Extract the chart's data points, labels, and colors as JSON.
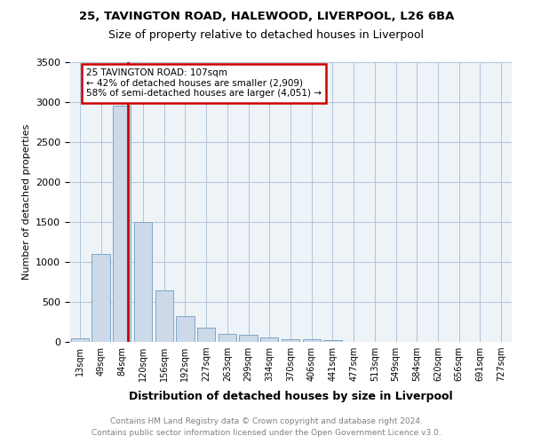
{
  "title1": "25, TAVINGTON ROAD, HALEWOOD, LIVERPOOL, L26 6BA",
  "title2": "Size of property relative to detached houses in Liverpool",
  "xlabel": "Distribution of detached houses by size in Liverpool",
  "ylabel": "Number of detached properties",
  "bin_labels": [
    "13sqm",
    "49sqm",
    "84sqm",
    "120sqm",
    "156sqm",
    "192sqm",
    "227sqm",
    "263sqm",
    "299sqm",
    "334sqm",
    "370sqm",
    "406sqm",
    "441sqm",
    "477sqm",
    "513sqm",
    "549sqm",
    "584sqm",
    "620sqm",
    "656sqm",
    "691sqm",
    "727sqm"
  ],
  "bar_values": [
    50,
    1100,
    2950,
    1500,
    650,
    325,
    175,
    100,
    90,
    55,
    35,
    30,
    25,
    5,
    2,
    1,
    1,
    0,
    0,
    0,
    0
  ],
  "bar_color": "#ccd9e8",
  "bar_edge_color": "#7da7c4",
  "vline_color": "#cc0000",
  "annotation_line1": "25 TAVINGTON ROAD: 107sqm",
  "annotation_line2": "← 42% of detached houses are smaller (2,909)",
  "annotation_line3": "58% of semi-detached houses are larger (4,051) →",
  "annotation_box_color": "#cc0000",
  "ylim": [
    0,
    3500
  ],
  "yticks": [
    0,
    500,
    1000,
    1500,
    2000,
    2500,
    3000,
    3500
  ],
  "grid_color": "#b0c4d8",
  "background_color": "#eef3f8",
  "footer1": "Contains HM Land Registry data © Crown copyright and database right 2024.",
  "footer2": "Contains public sector information licensed under the Open Government Licence v3.0.",
  "vline_x": 2.3
}
